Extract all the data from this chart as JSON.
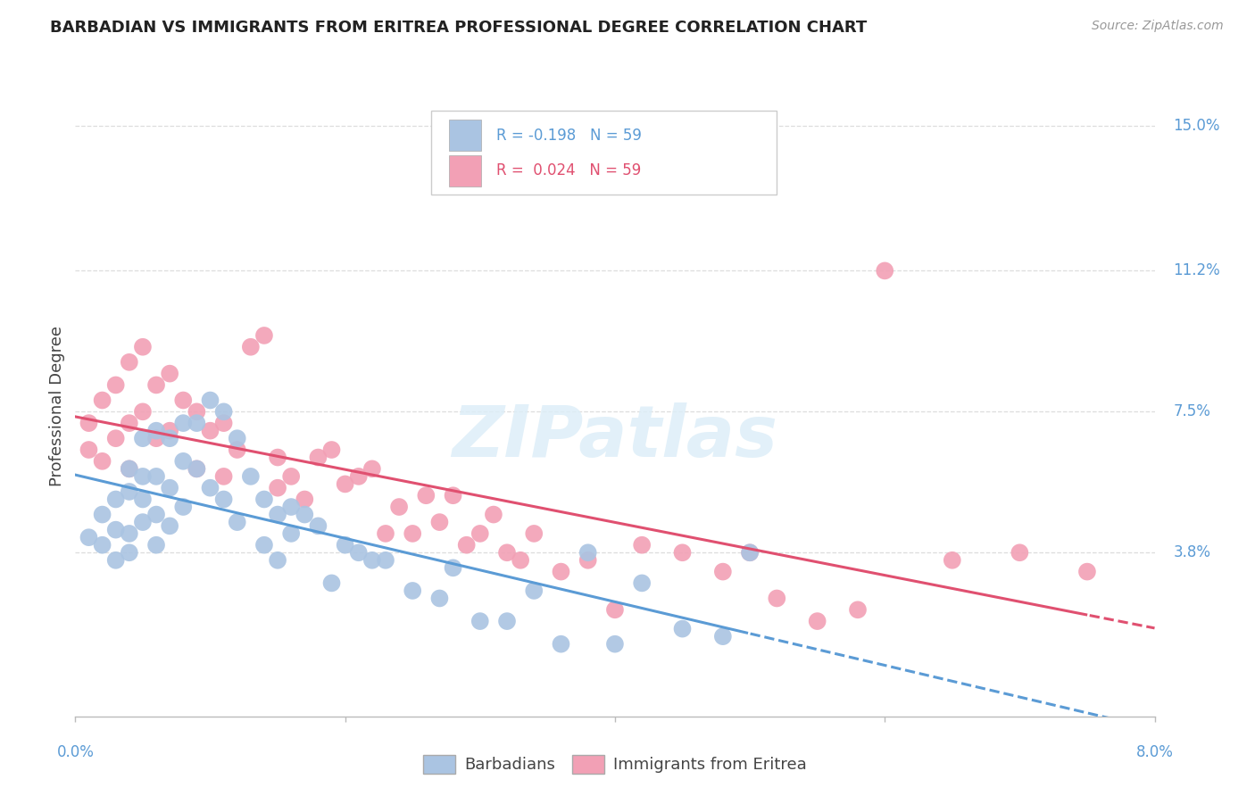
{
  "title": "BARBADIAN VS IMMIGRANTS FROM ERITREA PROFESSIONAL DEGREE CORRELATION CHART",
  "source": "Source: ZipAtlas.com",
  "ylabel": "Professional Degree",
  "ytick_labels": [
    "15.0%",
    "11.2%",
    "7.5%",
    "3.8%"
  ],
  "ytick_values": [
    0.15,
    0.112,
    0.075,
    0.038
  ],
  "xlim": [
    0.0,
    0.08
  ],
  "ylim": [
    -0.005,
    0.158
  ],
  "blue_color": "#aac4e2",
  "pink_color": "#f2a0b5",
  "trend_blue_color": "#5b9bd5",
  "trend_pink_color": "#e05070",
  "watermark": "ZIPatlas",
  "blue_scatter_x": [
    0.001,
    0.002,
    0.002,
    0.003,
    0.003,
    0.003,
    0.004,
    0.004,
    0.004,
    0.004,
    0.005,
    0.005,
    0.005,
    0.005,
    0.006,
    0.006,
    0.006,
    0.006,
    0.007,
    0.007,
    0.007,
    0.008,
    0.008,
    0.008,
    0.009,
    0.009,
    0.01,
    0.01,
    0.011,
    0.011,
    0.012,
    0.012,
    0.013,
    0.014,
    0.014,
    0.015,
    0.015,
    0.016,
    0.016,
    0.017,
    0.018,
    0.019,
    0.02,
    0.021,
    0.022,
    0.023,
    0.025,
    0.027,
    0.028,
    0.03,
    0.032,
    0.034,
    0.036,
    0.038,
    0.04,
    0.042,
    0.045,
    0.048,
    0.05
  ],
  "blue_scatter_y": [
    0.042,
    0.048,
    0.04,
    0.052,
    0.044,
    0.036,
    0.06,
    0.054,
    0.043,
    0.038,
    0.068,
    0.058,
    0.052,
    0.046,
    0.07,
    0.058,
    0.048,
    0.04,
    0.068,
    0.055,
    0.045,
    0.072,
    0.062,
    0.05,
    0.072,
    0.06,
    0.078,
    0.055,
    0.075,
    0.052,
    0.068,
    0.046,
    0.058,
    0.052,
    0.04,
    0.048,
    0.036,
    0.05,
    0.043,
    0.048,
    0.045,
    0.03,
    0.04,
    0.038,
    0.036,
    0.036,
    0.028,
    0.026,
    0.034,
    0.02,
    0.02,
    0.028,
    0.014,
    0.038,
    0.014,
    0.03,
    0.018,
    0.016,
    0.038
  ],
  "pink_scatter_x": [
    0.001,
    0.001,
    0.002,
    0.002,
    0.003,
    0.003,
    0.004,
    0.004,
    0.004,
    0.005,
    0.005,
    0.006,
    0.006,
    0.007,
    0.007,
    0.008,
    0.009,
    0.009,
    0.01,
    0.011,
    0.011,
    0.012,
    0.013,
    0.014,
    0.015,
    0.015,
    0.016,
    0.017,
    0.018,
    0.019,
    0.02,
    0.021,
    0.022,
    0.023,
    0.024,
    0.025,
    0.026,
    0.027,
    0.028,
    0.029,
    0.03,
    0.031,
    0.032,
    0.033,
    0.034,
    0.036,
    0.038,
    0.04,
    0.042,
    0.045,
    0.048,
    0.05,
    0.052,
    0.055,
    0.058,
    0.06,
    0.065,
    0.07,
    0.075
  ],
  "pink_scatter_y": [
    0.072,
    0.065,
    0.078,
    0.062,
    0.082,
    0.068,
    0.088,
    0.072,
    0.06,
    0.092,
    0.075,
    0.082,
    0.068,
    0.085,
    0.07,
    0.078,
    0.075,
    0.06,
    0.07,
    0.072,
    0.058,
    0.065,
    0.092,
    0.095,
    0.063,
    0.055,
    0.058,
    0.052,
    0.063,
    0.065,
    0.056,
    0.058,
    0.06,
    0.043,
    0.05,
    0.043,
    0.053,
    0.046,
    0.053,
    0.04,
    0.043,
    0.048,
    0.038,
    0.036,
    0.043,
    0.033,
    0.036,
    0.023,
    0.04,
    0.038,
    0.033,
    0.038,
    0.026,
    0.02,
    0.023,
    0.112,
    0.036,
    0.038,
    0.033
  ]
}
